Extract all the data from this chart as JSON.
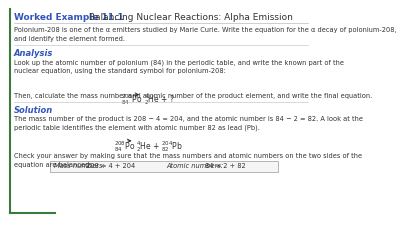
{
  "title_we": "Worked Example 11.1",
  "title_main": " Balancing Nuclear Reactions: Alpha Emission",
  "intro": "Polonium-208 is one of the α emitters studied by Marie Curie. Write the equation for the α decay of polonium-208,\nand identify the element formed.",
  "analysis_label": "Analysis",
  "analysis_text": "Look up the atomic number of polonium (84) in the periodic table, and write the known part of the\nnuclear equation, using the standard symbol for polonium-208:",
  "middle_text": "Then, calculate the mass number and atomic number of the product element, and write the final equation.",
  "solution_label": "Solution",
  "solution_text": "The mass number of the product is 208 − 4 = 204, and the atomic number is 84 − 2 = 82. A look at the\nperiodic table identifies the element with atomic number 82 as lead (Pb).",
  "check_text": "Check your answer by making sure that the mass numbers and atomic numbers on the two sides of the\nequation are balanced:",
  "mass_label": "Mass numbers:",
  "mass_eq": "208 = 4 + 204",
  "atomic_label": "Atomic numbers:",
  "atomic_eq": "84 = 2 + 82",
  "border_color": "#3A7A3A",
  "text_color": "#333333",
  "bg_color": "#FFFFFF",
  "title_we_color": "#3355BB",
  "section_color": "#3355BB",
  "sep_color": "#BBBBBB"
}
